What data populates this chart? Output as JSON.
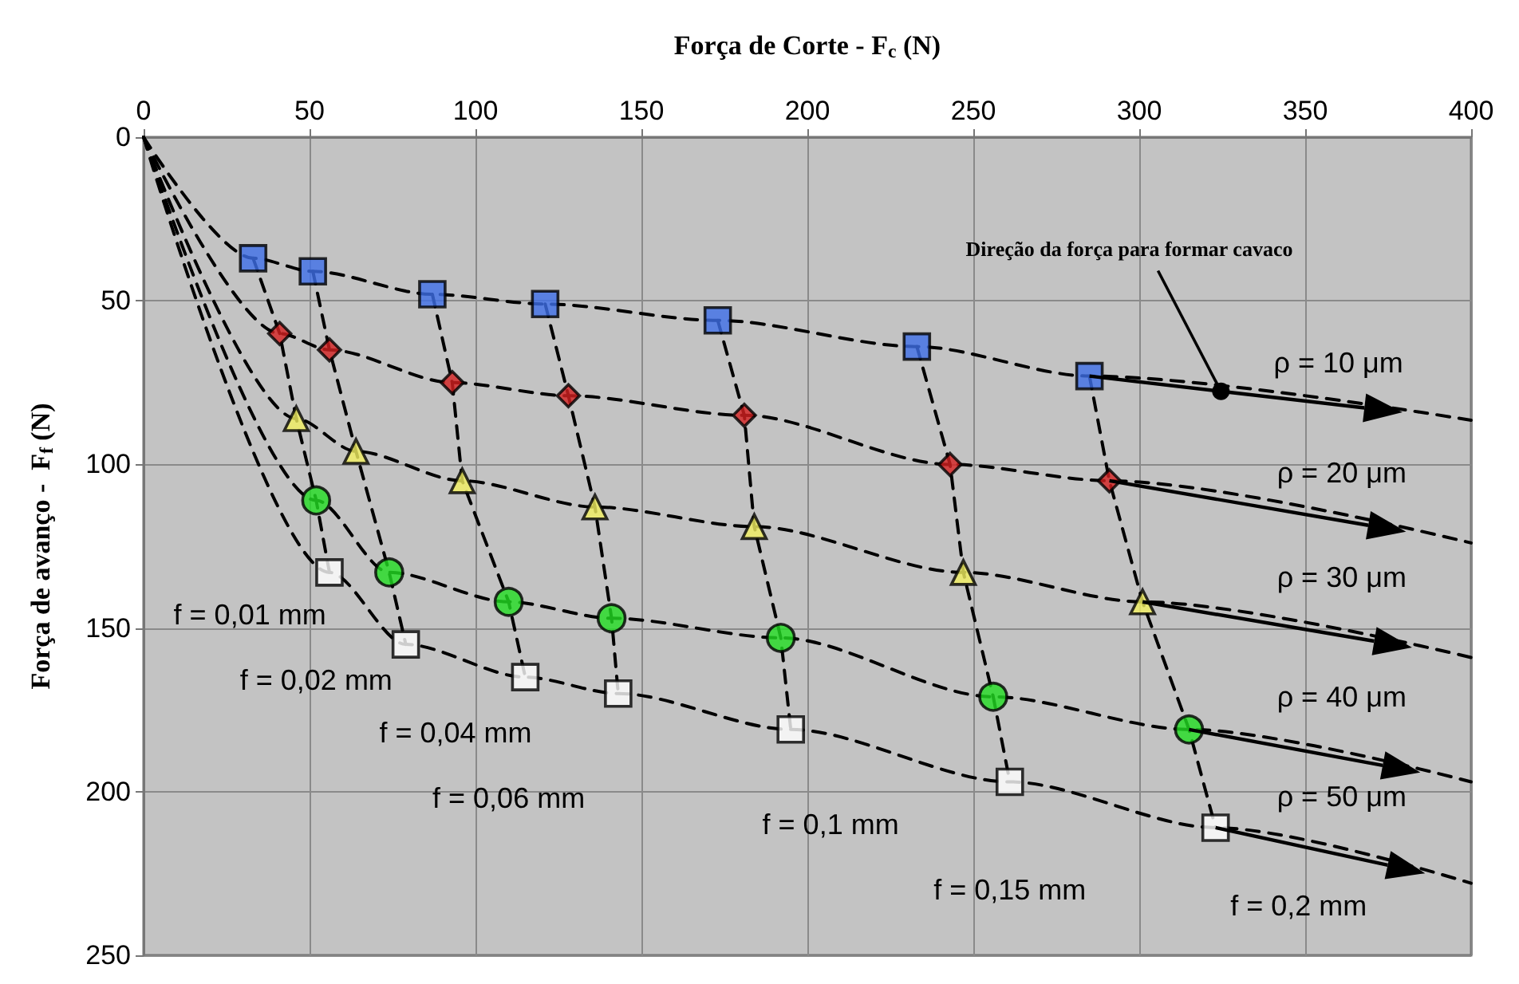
{
  "chart_data": {
    "type": "scatter",
    "xlabel": "Força de Corte - F$_{c}$ (N)",
    "ylabel": "Força de avanço -  F$_{f}$ (N)",
    "xlim": [
      0,
      400
    ],
    "ylim": [
      250,
      0
    ],
    "xticks": [
      0,
      50,
      100,
      150,
      200,
      250,
      300,
      350,
      400
    ],
    "yticks": [
      0,
      50,
      100,
      150,
      200,
      250
    ],
    "grid": true,
    "series": [
      {
        "type": "line",
        "color": "#000000",
        "marker": "none",
        "line_style": "dashed",
        "x": [
          0,
          33,
          51,
          87,
          121,
          173,
          233,
          285,
          400
        ],
        "values": [
          0,
          37,
          41,
          48,
          51,
          56,
          64,
          73,
          86.5
        ]
      },
      {
        "type": "line",
        "color": "#000000",
        "marker": "none",
        "line_style": "dashed",
        "x": [
          0,
          41,
          56,
          93,
          128,
          181,
          243,
          291,
          400
        ],
        "values": [
          0,
          60,
          65,
          75,
          79,
          85,
          100,
          105,
          124
        ]
      },
      {
        "type": "line",
        "color": "#000000",
        "marker": "none",
        "line_style": "dashed",
        "x": [
          0,
          46,
          64,
          96,
          136,
          184,
          247,
          301,
          400
        ],
        "values": [
          0,
          86,
          96,
          105,
          113,
          119,
          133,
          142,
          159
        ]
      },
      {
        "type": "line",
        "color": "#000000",
        "marker": "none",
        "line_style": "dashed",
        "x": [
          0,
          52,
          74,
          110,
          141,
          192,
          256,
          315,
          400
        ],
        "values": [
          0,
          111,
          133,
          142,
          147,
          153,
          171,
          181,
          197
        ]
      },
      {
        "type": "line",
        "color": "#000000",
        "marker": "none",
        "line_style": "dashed",
        "x": [
          0,
          56,
          79,
          115,
          143,
          195,
          261,
          323,
          400
        ],
        "values": [
          0,
          133,
          155,
          165,
          170,
          181,
          197,
          211,
          228
        ]
      },
      {
        "type": "line",
        "color": "#000000",
        "marker": "none",
        "line_style": "dashed",
        "x": [
          33,
          41,
          46,
          52,
          56
        ],
        "values": [
          37,
          60,
          86,
          111,
          133
        ]
      },
      {
        "type": "line",
        "color": "#000000",
        "marker": "none",
        "line_style": "dashed",
        "x": [
          51,
          56,
          64,
          74,
          79
        ],
        "values": [
          41,
          65,
          96,
          133,
          155
        ]
      },
      {
        "type": "line",
        "color": "#000000",
        "marker": "none",
        "line_style": "dashed",
        "x": [
          87,
          93,
          96,
          110,
          115
        ],
        "values": [
          48,
          75,
          105,
          142,
          165
        ]
      },
      {
        "type": "line",
        "color": "#000000",
        "marker": "none",
        "line_style": "dashed",
        "x": [
          121,
          128,
          136,
          141,
          143
        ],
        "values": [
          51,
          79,
          113,
          147,
          170
        ]
      },
      {
        "type": "line",
        "color": "#000000",
        "marker": "none",
        "line_style": "dashed",
        "x": [
          173,
          181,
          184,
          192,
          195
        ],
        "values": [
          56,
          85,
          119,
          153,
          181
        ]
      },
      {
        "type": "line",
        "color": "#000000",
        "marker": "none",
        "line_style": "dashed",
        "x": [
          233,
          243,
          247,
          256,
          261
        ],
        "values": [
          64,
          100,
          133,
          171,
          197
        ]
      },
      {
        "type": "line",
        "color": "#000000",
        "marker": "none",
        "line_style": "dashed",
        "x": [
          285,
          291,
          301,
          315,
          323
        ],
        "values": [
          73,
          105,
          142,
          181,
          211
        ]
      },
      {
        "color": "#3f6fe8",
        "marker": "square",
        "x": [
          33,
          51,
          87,
          121,
          173,
          233,
          285
        ],
        "values": [
          37,
          41,
          48,
          51,
          56,
          64,
          73
        ]
      },
      {
        "color": "#d42020",
        "marker": "diamond",
        "x": [
          41,
          56,
          93,
          128,
          181,
          243,
          291
        ],
        "values": [
          60,
          65,
          75,
          79,
          85,
          100,
          105
        ]
      },
      {
        "color": "#f2f060",
        "marker": "triangle",
        "x": [
          46,
          64,
          96,
          136,
          184,
          247,
          301
        ],
        "values": [
          86,
          96,
          105,
          113,
          119,
          133,
          142
        ]
      },
      {
        "color": "#22dd22",
        "marker": "circle",
        "x": [
          52,
          74,
          110,
          141,
          192,
          256,
          315
        ],
        "values": [
          111,
          133,
          142,
          147,
          153,
          171,
          181
        ]
      },
      {
        "color": "#ffffff",
        "marker": "square",
        "x": [
          56,
          79,
          115,
          143,
          195,
          261,
          323
        ],
        "values": [
          133,
          155,
          165,
          170,
          181,
          197,
          211
        ]
      }
    ],
    "annotations": [
      {
        "text": "Direção da força para formar cavaco",
        "x": 324,
        "y": 77.5
      },
      {
        "text": "ρ = 10 μm",
        "x": 400,
        "y": 86.5
      },
      {
        "text": "ρ = 20 μm",
        "x": 400,
        "y": 124
      },
      {
        "text": "ρ = 30 μm",
        "x": 341,
        "y": 149
      },
      "ρ = 40 μm",
      {
        "text": "ρ = 50 μm",
        "x": 355,
        "y": 218
      },
      {
        "text": "f = 0,01 mm",
        "x": 56,
        "y": 133
      },
      {
        "text": "f = 0,02 mm",
        "x": 79,
        "y": 155
      },
      {
        "text": "f = 0,04 mm",
        "x": 115,
        "y": 165
      },
      "f = 0,06 mm",
      {
        "text": "f = 0,1 mm",
        "x": 195,
        "y": 181
      },
      "f = 0,15 mm",
      {
        "text": "f = 0,2 mm",
        "x": 323,
        "y": 211
      }
    ]
  }
}
